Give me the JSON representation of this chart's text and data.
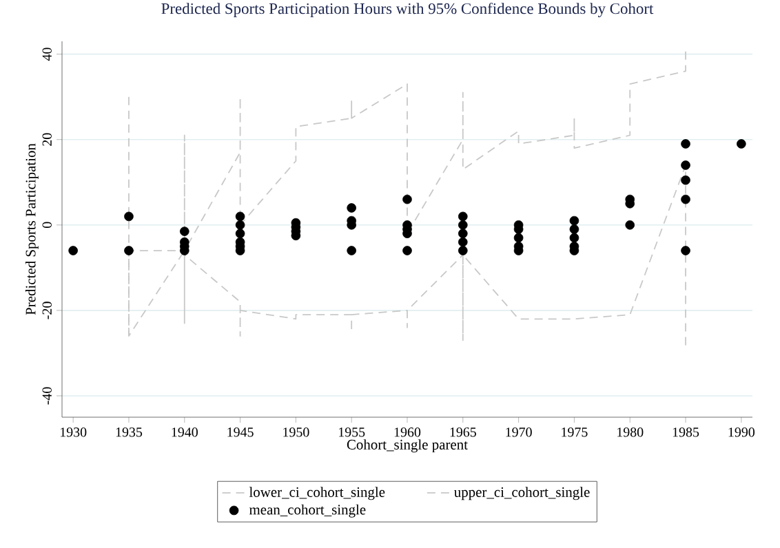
{
  "chart_data": {
    "type": "line",
    "title": "Predicted Sports Participation Hours with 95% Confidence Bounds by Cohort",
    "xlabel": "Cohort_single parent",
    "ylabel": "Predicted Sports Participation",
    "xlim": [
      1929,
      1991
    ],
    "xticks": [
      1930,
      1935,
      1940,
      1945,
      1950,
      1955,
      1960,
      1965,
      1970,
      1975,
      1980,
      1985,
      1990
    ],
    "ylim": [
      -45,
      43
    ],
    "yticks": [
      -40,
      -20,
      0,
      20,
      40
    ],
    "grid": "y",
    "legend": "bottom",
    "series": [
      {
        "name": "lower_ci_cohort_single",
        "line_style": "dashed",
        "color": "#c8c8c8",
        "x": [
          1935,
          1935,
          1940,
          1940,
          1940,
          1945,
          1945,
          1945,
          1950,
          1950,
          1955,
          1955,
          1955,
          1960,
          1960,
          1960,
          1965,
          1965,
          1965,
          1970,
          1975,
          1980,
          1985,
          1985
        ],
        "values": [
          -26,
          -6,
          -6,
          -23,
          -7,
          -18,
          -26,
          -20,
          -22,
          -21,
          -21,
          -25,
          -21,
          -20,
          -24,
          -20,
          -7,
          -27,
          -7,
          -22,
          -22,
          -21,
          14,
          -29
        ]
      },
      {
        "name": "upper_ci_cohort_single",
        "line_style": "dashed",
        "color": "#c8c8c8",
        "x": [
          1935,
          1935,
          1940,
          1940,
          1940,
          1945,
          1945,
          1945,
          1950,
          1950,
          1955,
          1955,
          1955,
          1960,
          1960,
          1965,
          1965,
          1965,
          1970,
          1970,
          1975,
          1975,
          1975,
          1980,
          1980,
          1985,
          1985
        ],
        "values": [
          30,
          -26,
          -6,
          21,
          -6,
          17,
          30,
          0,
          15,
          23,
          25,
          29,
          25,
          33,
          -2,
          20,
          31,
          13,
          22,
          19,
          21,
          25,
          18,
          21,
          33,
          36,
          41
        ]
      },
      {
        "name": "mean_cohort_single",
        "type": "scatter",
        "marker": "circle",
        "color": "#000000",
        "x": [
          1930,
          1935,
          1935,
          1940,
          1940,
          1940,
          1940,
          1945,
          1945,
          1945,
          1945,
          1945,
          1945,
          1950,
          1950,
          1950,
          1950,
          1955,
          1955,
          1955,
          1955,
          1960,
          1960,
          1960,
          1960,
          1960,
          1965,
          1965,
          1965,
          1965,
          1965,
          1970,
          1970,
          1970,
          1970,
          1970,
          1975,
          1975,
          1975,
          1975,
          1975,
          1980,
          1980,
          1980,
          1985,
          1985,
          1985,
          1985,
          1985,
          1990
        ],
        "values": [
          -6,
          2,
          -6,
          -1.5,
          -4,
          -5,
          -6,
          2,
          0,
          -2,
          -4,
          -5,
          -6,
          0.5,
          -0.5,
          -1.5,
          -2.5,
          4,
          1,
          0,
          -6,
          6,
          0,
          -1,
          -2,
          -6,
          2,
          0,
          -2,
          -4,
          -6,
          0,
          -1,
          -3,
          -5,
          -6,
          1,
          -1,
          -3,
          -5,
          -6,
          6,
          5,
          0,
          19,
          14,
          10.5,
          6,
          -6,
          19
        ]
      }
    ]
  }
}
